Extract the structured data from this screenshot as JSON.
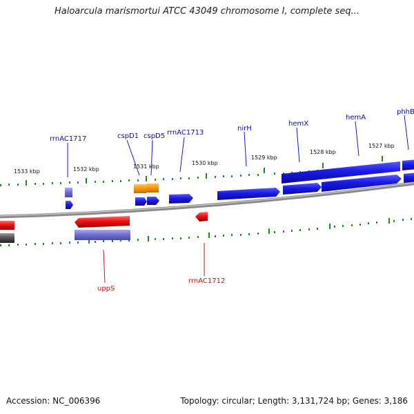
{
  "title": "Haloarcula marismortui ATCC 43049 chromosome I, complete seq...",
  "footer": {
    "accession": "Accession: NC_006396",
    "topology": "Topology: circular; Length: 3,131,724 bp; Genes: 3,186"
  },
  "colors": {
    "forward_gene": "#1414e6",
    "reverse_gene": "#e61414",
    "rna_gene": "#7070d0",
    "orange_gene": "#ff9800",
    "gray_gene": "#555555",
    "tick": "#1a8a1a",
    "backbone": "#8a8a8a",
    "forward_label": "#0a0aa0",
    "reverse_label": "#c01010"
  },
  "kbp_labels": [
    "1533 kbp",
    "1532 kbp",
    "1531 kbp",
    "1530 kbp",
    "1529 kbp",
    "1528 kbp",
    "1527 kbp"
  ],
  "gene_labels": {
    "rrnAC1717": "rrnAC1717",
    "cspD1": "cspD1",
    "cspD5": "cspD5",
    "rrnAC1713": "rrnAC1713",
    "nirH": "nirH",
    "hemX": "hemX",
    "hemA": "hemA",
    "phhB": "phhB",
    "uppS": "uppS",
    "rrnAC1712": "rrnAC1712"
  }
}
